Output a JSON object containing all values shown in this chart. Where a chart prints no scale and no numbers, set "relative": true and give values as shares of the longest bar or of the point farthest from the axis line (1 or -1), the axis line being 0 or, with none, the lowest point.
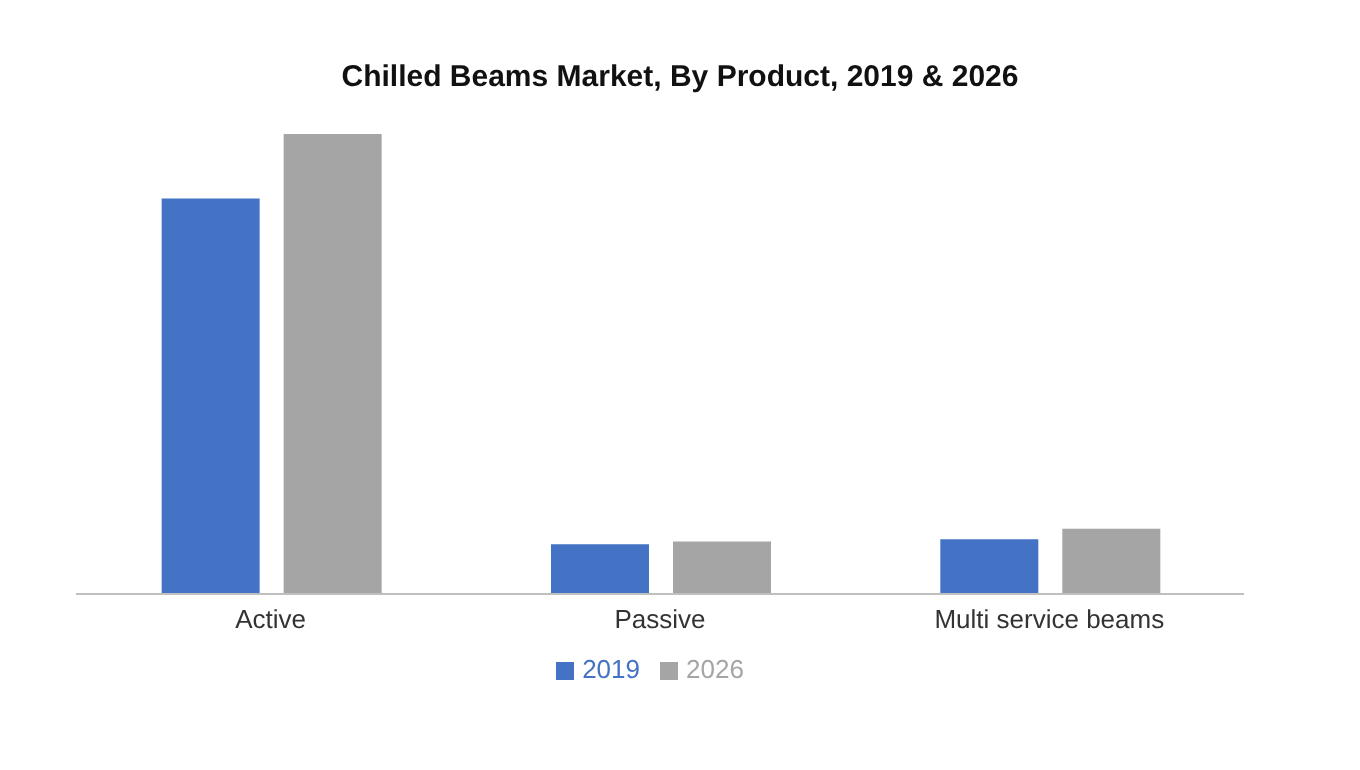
{
  "chart_data": {
    "type": "bar",
    "title": "Chilled Beams Market, By Product, 2019 & 2026",
    "categories": [
      "Active",
      "Passive",
      "Multi service beams"
    ],
    "relative": true,
    "series": [
      {
        "name": "2019",
        "color": "#4472c4",
        "values": [
          0.86,
          0.108,
          0.119
        ]
      },
      {
        "name": "2026",
        "color": "#a5a5a5",
        "values": [
          1,
          0.114,
          0.142
        ]
      }
    ],
    "grid": false,
    "legend": "bottom"
  }
}
